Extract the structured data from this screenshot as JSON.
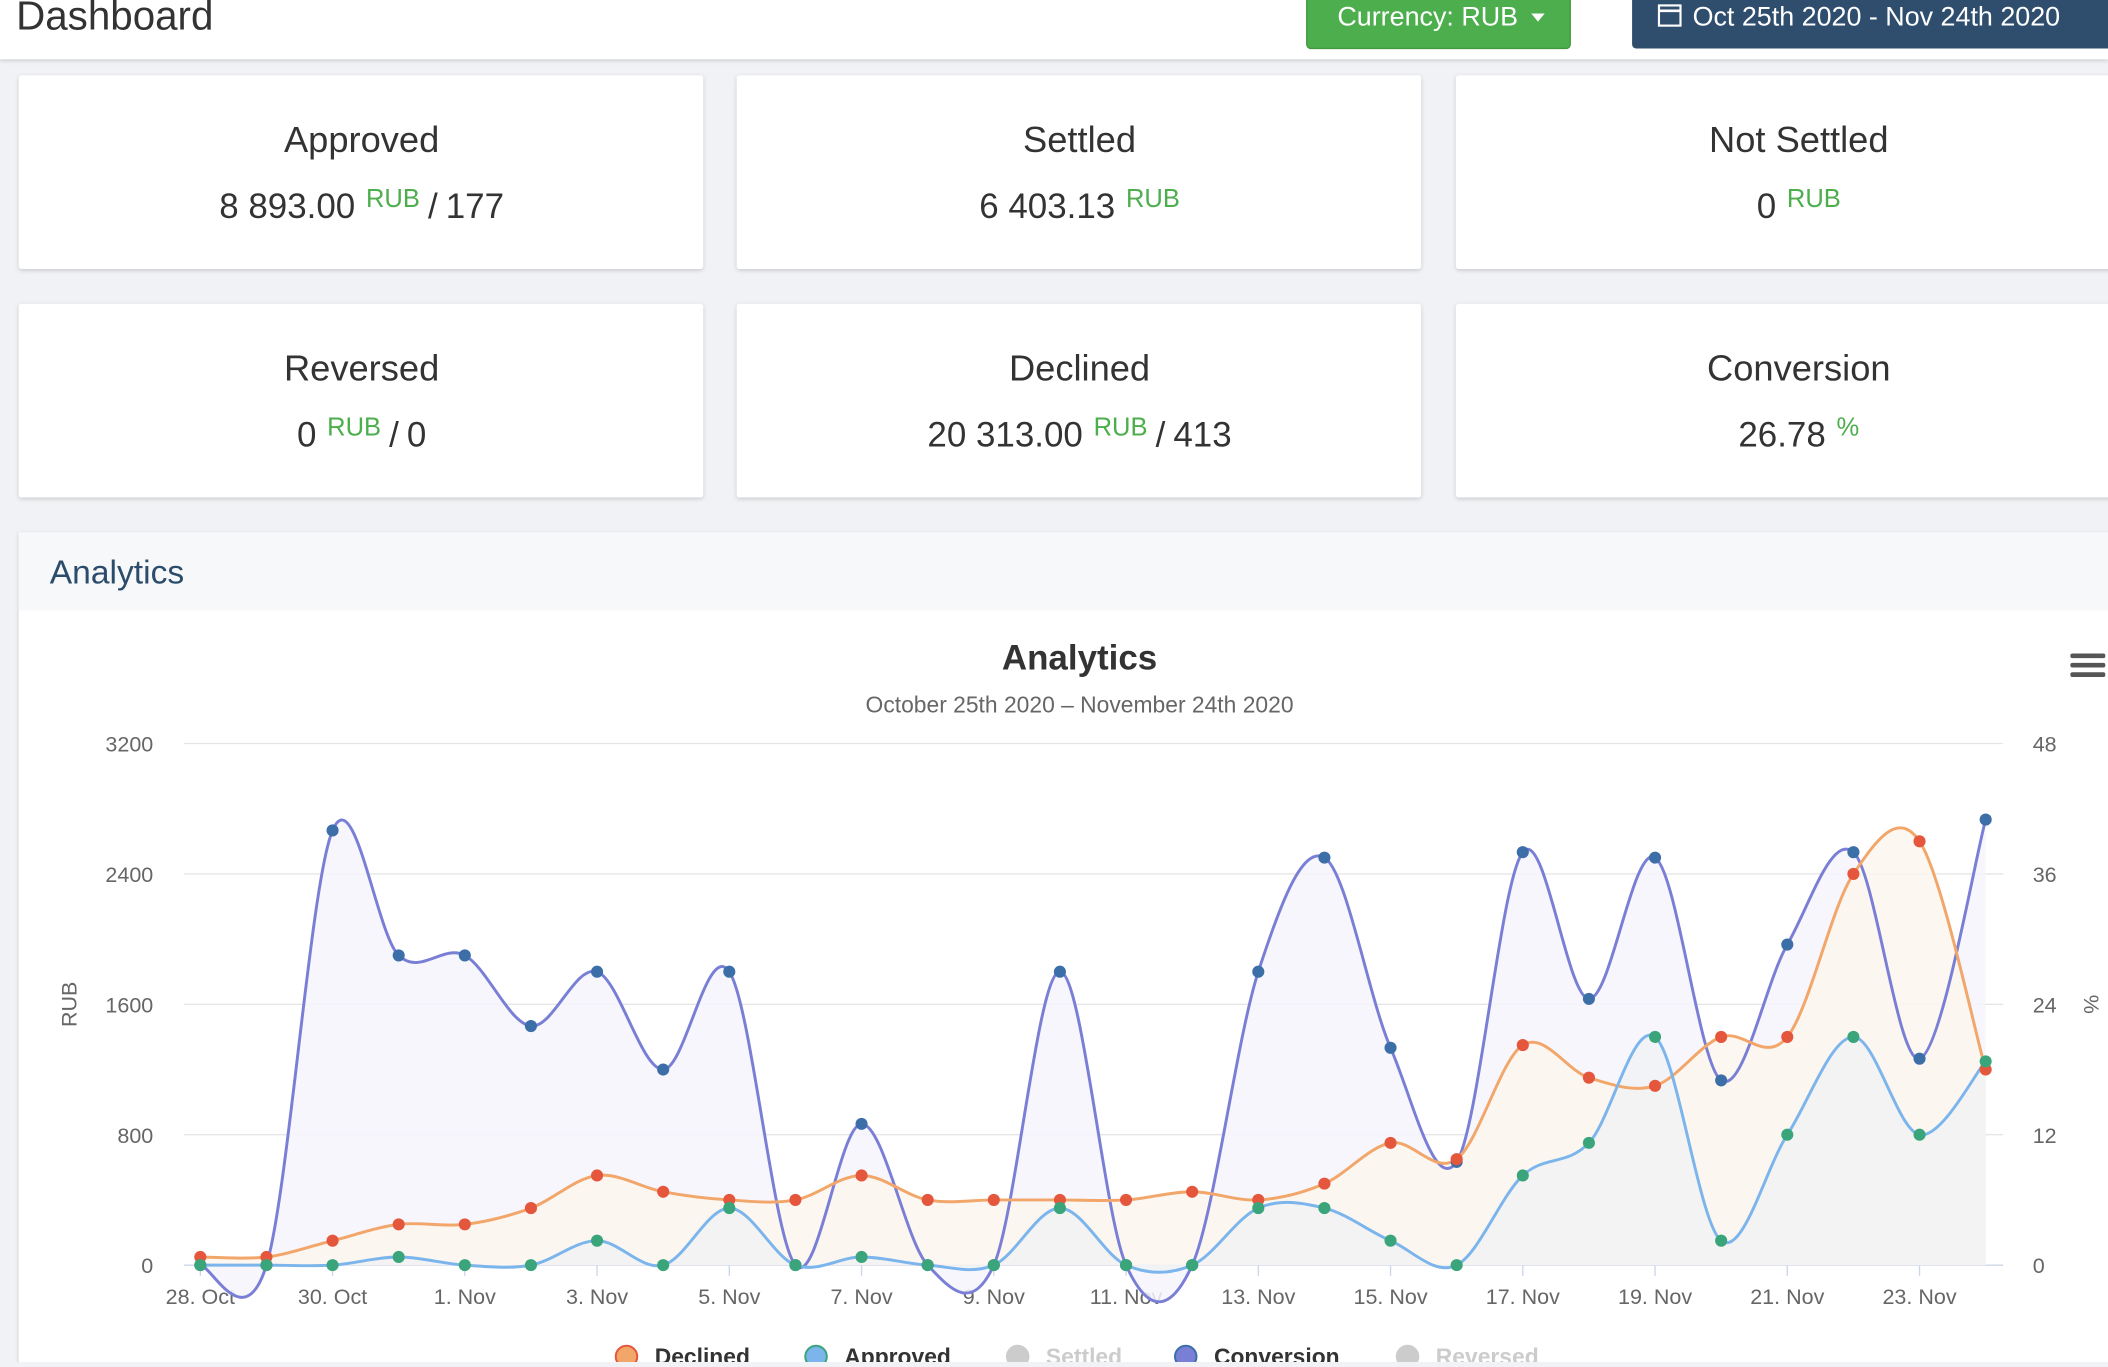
{
  "header": {
    "title": "Dashboard",
    "currency_button": "Currency: RUB",
    "date_button": "Oct 25th 2020 - Nov 24th 2020"
  },
  "cards": [
    {
      "title": "Approved",
      "value": "8 893.00",
      "unit": "RUB",
      "count": "177"
    },
    {
      "title": "Settled",
      "value": "6 403.13",
      "unit": "RUB"
    },
    {
      "title": "Not Settled",
      "value": "0",
      "unit": "RUB"
    },
    {
      "title": "Reversed",
      "value": "0",
      "unit": "RUB",
      "count": "0"
    },
    {
      "title": "Declined",
      "value": "20 313.00",
      "unit": "RUB",
      "count": "413"
    },
    {
      "title": "Conversion",
      "value": "26.78",
      "unit": "%"
    }
  ],
  "panel": {
    "title": "Analytics"
  },
  "chart_data": {
    "type": "line",
    "title": "Analytics",
    "subtitle": "October 25th 2020 – November 24th 2020",
    "y_label": "RUB",
    "y2_label": "%",
    "categories": [
      "28. Oct",
      null,
      "30. Oct",
      null,
      "1. Nov",
      null,
      "3. Nov",
      null,
      "5. Nov",
      null,
      "7. Nov",
      null,
      "9. Nov",
      null,
      "11. Nov",
      null,
      "13. Nov",
      null,
      "15. Nov",
      null,
      "17. Nov",
      null,
      "19. Nov",
      null,
      "21. Nov",
      null,
      "23. Nov",
      null
    ],
    "ylim": [
      0,
      3200
    ],
    "yticks": [
      0,
      800,
      1600,
      2400,
      3200
    ],
    "y2lim": [
      0,
      48
    ],
    "y2ticks": [
      0,
      12,
      24,
      36,
      48
    ],
    "grid": true,
    "series": [
      {
        "name": "Declined",
        "color": "#f2a66a",
        "marker_color": "#e4573d",
        "fill_color": "#fdf6ee",
        "values": [
          50,
          50,
          150,
          250,
          250,
          350,
          550,
          450,
          400,
          400,
          550,
          400,
          400,
          400,
          400,
          450,
          400,
          500,
          750,
          650,
          1350,
          1150,
          1100,
          1400,
          1400,
          2400,
          2600,
          1200
        ]
      },
      {
        "name": "Approved",
        "color": "#7cb5ec",
        "marker_color": "#3aa57a",
        "fill_color": "#f1f2f4",
        "values": [
          0,
          0,
          0,
          50,
          0,
          0,
          150,
          0,
          350,
          0,
          50,
          0,
          0,
          350,
          0,
          0,
          350,
          350,
          150,
          0,
          550,
          750,
          1400,
          150,
          800,
          1400,
          800,
          1250
        ]
      },
      {
        "name": "Settled",
        "color": "#cccccc",
        "visible": false
      },
      {
        "name": "Conversion",
        "color": "#7a7fd6",
        "marker_color": "#3c6ea8",
        "fill_color": "#f6f5fd",
        "axis": "y2",
        "values": [
          0,
          0,
          40,
          28.5,
          28.5,
          22,
          27,
          18,
          27,
          0,
          13,
          0,
          0,
          27,
          0,
          0,
          27,
          37.5,
          20,
          9.5,
          38,
          24.5,
          37.5,
          17,
          29.5,
          38,
          19,
          41
        ]
      },
      {
        "name": "Reversed",
        "color": "#cccccc",
        "visible": false
      }
    ]
  }
}
